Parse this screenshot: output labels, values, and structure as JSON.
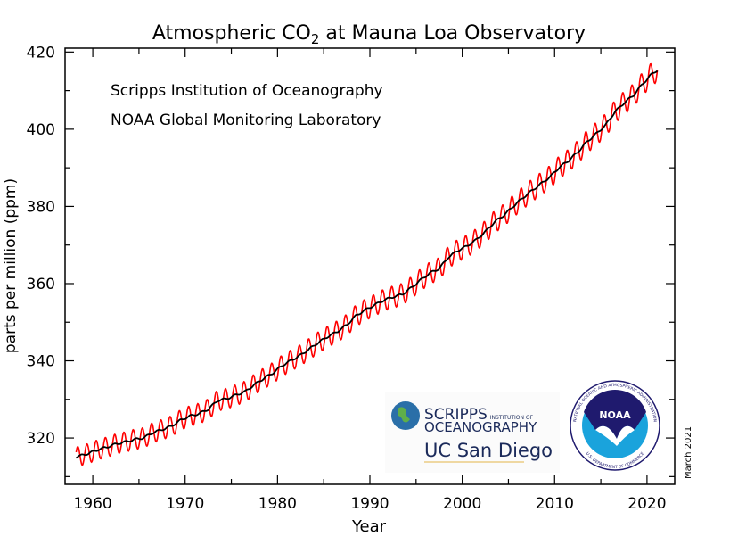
{
  "chart_data": {
    "type": "line",
    "title_parts": {
      "main": "Atmospheric CO",
      "subscript": "2",
      "rest": " at Mauna Loa Observatory"
    },
    "subtitle_lines": [
      "Scripps Institution of Oceanography",
      "NOAA Global Monitoring Laboratory"
    ],
    "xlabel": "Year",
    "ylabel": "parts per million (ppm)",
    "date_note": "March 2021",
    "xlim": [
      1957,
      2023
    ],
    "ylim": [
      308,
      421
    ],
    "x_ticks": [
      1960,
      1970,
      1980,
      1990,
      2000,
      2010,
      2020
    ],
    "y_ticks": [
      320,
      340,
      360,
      380,
      400,
      420
    ],
    "grid": false,
    "series": [
      {
        "role": "monthly",
        "color": "#ff0000",
        "seasonal_amplitude_ppm": 3.0
      },
      {
        "role": "seasonally-corrected trend",
        "color": "#000000"
      }
    ],
    "annual_mean": {
      "years": [
        1958,
        1959,
        1960,
        1961,
        1962,
        1963,
        1964,
        1965,
        1966,
        1967,
        1968,
        1969,
        1970,
        1971,
        1972,
        1973,
        1974,
        1975,
        1976,
        1977,
        1978,
        1979,
        1980,
        1981,
        1982,
        1983,
        1984,
        1985,
        1986,
        1987,
        1988,
        1989,
        1990,
        1991,
        1992,
        1993,
        1994,
        1995,
        1996,
        1997,
        1998,
        1999,
        2000,
        2001,
        2002,
        2003,
        2004,
        2005,
        2006,
        2007,
        2008,
        2009,
        2010,
        2011,
        2012,
        2013,
        2014,
        2015,
        2016,
        2017,
        2018,
        2019,
        2020,
        2021
      ],
      "ppm": [
        315.3,
        315.98,
        316.91,
        317.64,
        318.45,
        318.99,
        319.62,
        320.04,
        321.37,
        322.18,
        323.05,
        324.62,
        325.68,
        326.32,
        327.46,
        329.68,
        330.19,
        331.13,
        332.03,
        333.84,
        335.41,
        336.84,
        338.76,
        340.12,
        341.48,
        343.15,
        344.87,
        346.35,
        347.61,
        349.31,
        351.69,
        353.2,
        354.45,
        355.7,
        356.54,
        357.21,
        358.96,
        360.97,
        362.74,
        363.88,
        366.84,
        368.54,
        369.71,
        371.32,
        373.45,
        375.98,
        377.7,
        379.98,
        382.09,
        384.02,
        385.83,
        387.64,
        390.1,
        391.85,
        394.06,
        396.74,
        398.81,
        401.01,
        404.41,
        406.76,
        408.72,
        411.66,
        414.24,
        416.0
      ]
    },
    "series_range": [
      1958.2,
      2021.15
    ]
  },
  "logos": {
    "scripps": {
      "line1": "SCRIPPS",
      "line1_small": "INSTITUTION OF",
      "line2": "OCEANOGRAPHY",
      "ucsd": "UC San Diego"
    },
    "noaa": {
      "text": "NOAA",
      "ring": "NATIONAL OCEANIC AND ATMOSPHERIC ADMINISTRATION",
      "ring_bottom": "U.S. DEPARTMENT OF COMMERCE",
      "colors": {
        "navy": "#1f1a6e",
        "sky": "#1aa3dc"
      }
    }
  }
}
